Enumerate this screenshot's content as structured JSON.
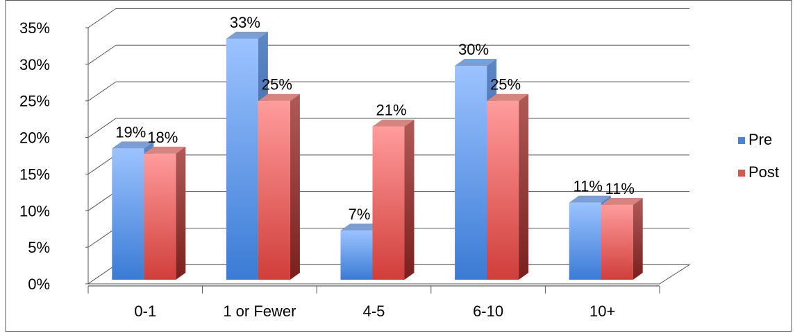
{
  "chart_data": {
    "type": "bar",
    "categories": [
      "0-1",
      "1 or Fewer",
      "4-5",
      "6-10",
      "10+"
    ],
    "series": [
      {
        "name": "Pre",
        "values": [
          18.5,
          33.5,
          7.3,
          29.8,
          11.1
        ],
        "labels": [
          "19%",
          "33%",
          "7%",
          "30%",
          "11%"
        ],
        "color": "#4f81bd"
      },
      {
        "name": "Post",
        "values": [
          17.8,
          25.0,
          21.5,
          25.0,
          10.8
        ],
        "labels": [
          "18%",
          "25%",
          "21%",
          "25%",
          "11%"
        ],
        "color": "#c0504d"
      }
    ],
    "yticks": [
      "0%",
      "5%",
      "10%",
      "15%",
      "20%",
      "25%",
      "30%",
      "35%"
    ],
    "ylim": [
      0,
      35
    ],
    "grid": true,
    "legend": "right",
    "title": "",
    "xlabel": "",
    "ylabel": ""
  }
}
